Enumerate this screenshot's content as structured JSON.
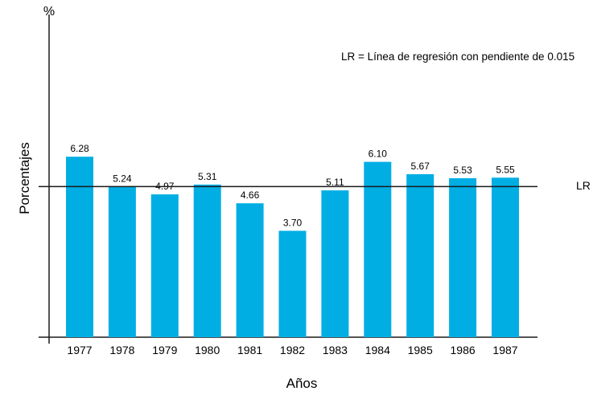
{
  "chart_data": {
    "type": "bar",
    "categories": [
      "1977",
      "1978",
      "1979",
      "1980",
      "1981",
      "1982",
      "1983",
      "1984",
      "1985",
      "1986",
      "1987"
    ],
    "values": [
      6.28,
      5.24,
      4.97,
      5.31,
      4.66,
      3.7,
      5.11,
      6.1,
      5.67,
      5.53,
      5.55
    ],
    "value_labels": [
      "6.28",
      "5.24",
      "4.97",
      "5.31",
      "4.66",
      "3.70",
      "5.11",
      "6.10",
      "5.67",
      "5.53",
      "5.55"
    ],
    "title": "",
    "xlabel": "Años",
    "ylabel": "Porcentajes",
    "y_unit": "%",
    "regression_line": {
      "label": "LR",
      "value": 5.24
    },
    "annotation": "LR = Línea de regresión con pendiente de 0.015",
    "bar_color": "#00aee4",
    "line_color": "#1a1a1a",
    "grid": false
  }
}
